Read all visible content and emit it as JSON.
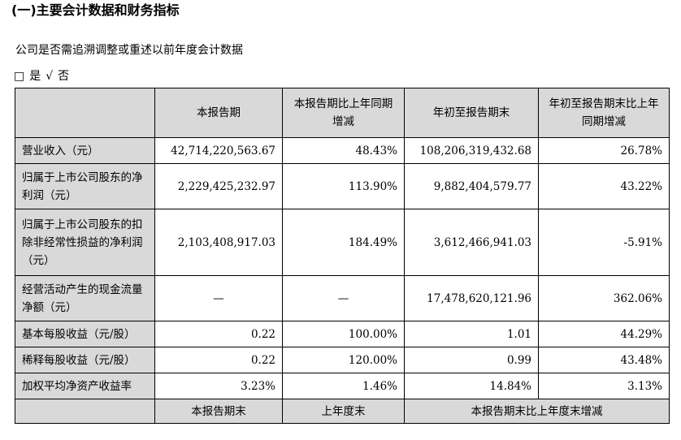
{
  "heading": "(一)主要会计数据和财务指标",
  "question": "公司是否需追溯调整或重述以前年度会计数据",
  "options": {
    "box": "□",
    "yes": "是",
    "check": "√",
    "no": "否"
  },
  "table": {
    "headers": [
      "",
      "本报告期",
      "本报告期比上年同期增减",
      "年初至报告期末",
      "年初至报告期末比上年同期增减"
    ],
    "rows": [
      {
        "label": "营业收入（元）",
        "v1": "42,714,220,563.67",
        "v2": "48.43%",
        "v3": "108,206,319,432.68",
        "v4": "26.78%"
      },
      {
        "label": "归属于上市公司股东的净利润（元）",
        "v1": "2,229,425,232.97",
        "v2": "113.90%",
        "v3": "9,882,404,579.77",
        "v4": "43.22%"
      },
      {
        "label": "归属于上市公司股东的扣除非经常性损益的净利润（元）",
        "v1": "2,103,408,917.03",
        "v2": "184.49%",
        "v3": "3,612,466,941.03",
        "v4": "-5.91%"
      },
      {
        "label": "经营活动产生的现金流量净额（元）",
        "v1": "—",
        "v2": "—",
        "v3": "17,478,620,121.96",
        "v4": "362.06%"
      },
      {
        "label": "基本每股收益（元/股）",
        "v1": "0.22",
        "v2": "100.00%",
        "v3": "1.01",
        "v4": "44.29%"
      },
      {
        "label": "稀释每股收益（元/股）",
        "v1": "0.22",
        "v2": "120.00%",
        "v3": "0.99",
        "v4": "43.48%"
      },
      {
        "label": "加权平均净资产收益率",
        "v1": "3.23%",
        "v2": "1.46%",
        "v3": "14.84%",
        "v4": "3.13%"
      }
    ],
    "footer": [
      "",
      "本报告期末",
      "上年度末",
      "本报告期末比上年度末增减"
    ]
  }
}
